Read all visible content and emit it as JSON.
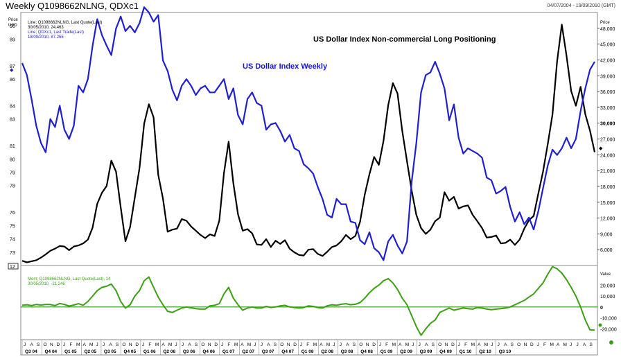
{
  "header": {
    "title": "Weekly Q1098662NLNG, QDXc1",
    "range": "04/07/2004 - 19/09/2010 (GMT)"
  },
  "colors": {
    "price": "#1f1fd0",
    "positioning": "#000000",
    "momentum": "#3aa012",
    "zero": "#2a9a10"
  },
  "chart_data": [
    {
      "type": "line",
      "title": "US Dollar Index Non-commercial Long Positioning",
      "subtitle": "US Dollar Index Weekly",
      "left_axis": {
        "label": "Price USD",
        "ticks": [
          "90",
          "89",
          "87",
          "86",
          "84",
          "83",
          "81",
          "80",
          "79",
          "78",
          "76",
          "75",
          "74",
          "73"
        ],
        "ylim": [
          72,
          91
        ]
      },
      "right_axis": {
        "ticks": [
          "48,000",
          "45,000",
          "42,000",
          "39,000",
          "36,000",
          "33,000",
          "30,000",
          "27,000",
          "24,000",
          "21,000",
          "18,000",
          "15,000",
          "12,000",
          "9,000",
          "6,000"
        ],
        "ylim": [
          3000,
          51000
        ]
      },
      "corner_label": "12",
      "legend": [
        {
          "label": "Line; Q1098662NLNG, Last Quote(Last)",
          "date": "30/05/2010",
          "value": "24,463"
        },
        {
          "label": "Line; QDXc1, Last Trade(Last)",
          "date": "18/09/2010",
          "value": "87.255"
        }
      ],
      "series": [
        {
          "name": "QDXc1",
          "axis": "left",
          "color": "#1f1fd0",
          "values": [
            87.2,
            86.3,
            84.5,
            82.5,
            81.2,
            80.5,
            83,
            82.4,
            84,
            82.2,
            81.5,
            82.5,
            85.5,
            85,
            86,
            88.5,
            90.5,
            89.3,
            88.5,
            87.8,
            89.8,
            90.7,
            89.6,
            90,
            89.5,
            90.2,
            91.4,
            91,
            90.3,
            90.8,
            87.4,
            86.6,
            85.2,
            84.4,
            85.5,
            86,
            85.5,
            84.8,
            85.3,
            85.5,
            85,
            85,
            85.5,
            86,
            84.5,
            85.3,
            83.3,
            82.6,
            84.5,
            85,
            84.2,
            84,
            82.2,
            82.6,
            82.7,
            82.1,
            81.3,
            81.8,
            80.8,
            80.6,
            79.6,
            79.3,
            78.9,
            77.9,
            77,
            75.8,
            75.6,
            77,
            76.6,
            76.6,
            75.3,
            75.2,
            73.9,
            73.6,
            74.5,
            73.3,
            73,
            72.4,
            73.8,
            74.3,
            73.5,
            72.9,
            73.8,
            78.3,
            81.2,
            85,
            86.3,
            86.5,
            87.3,
            86.4,
            85.3,
            82.9,
            84.1,
            81.6,
            80.4,
            80.8,
            80.6,
            80.4,
            80.1,
            78.6,
            78.4,
            77.4,
            77.6,
            77.9,
            76.4,
            75.3,
            76,
            75.1,
            75.6,
            74.7,
            76.1,
            77.8,
            79.5,
            80.7,
            80.3,
            80.8,
            81.6,
            80.8,
            81.5,
            83.6,
            85.3,
            86.7,
            87.3
          ]
        },
        {
          "name": "Q1098662NLNG",
          "axis": "right",
          "color": "#000000",
          "values": [
            3900,
            3600,
            3800,
            4000,
            4500,
            5100,
            5800,
            6200,
            6700,
            6600,
            5900,
            6600,
            6800,
            7200,
            7900,
            10200,
            14700,
            16800,
            18100,
            22900,
            20800,
            14000,
            7600,
            10300,
            15900,
            21500,
            29900,
            33600,
            31100,
            20200,
            15700,
            9400,
            9800,
            10000,
            11800,
            11500,
            10400,
            9600,
            8800,
            8200,
            8900,
            8600,
            11500,
            20500,
            26500,
            18600,
            12700,
            9600,
            9900,
            9100,
            7000,
            6900,
            8000,
            6500,
            7700,
            7100,
            7800,
            6200,
            5500,
            5000,
            4900,
            6000,
            6100,
            5200,
            4800,
            5600,
            6500,
            6800,
            7600,
            8800,
            8000,
            8600,
            11300,
            16400,
            20300,
            23600,
            22100,
            26600,
            33400,
            37600,
            35600,
            28500,
            22800,
            17200,
            12600,
            10100,
            9000,
            9800,
            11400,
            12100,
            16900,
            15300,
            16000,
            13800,
            14200,
            14400,
            12600,
            11400,
            10100,
            8300,
            8400,
            8700,
            7200,
            7300,
            7900,
            6900,
            7900,
            10000,
            11600,
            12400,
            16700,
            20800,
            26000,
            31600,
            41700,
            48700,
            42800,
            36100,
            33300,
            36900,
            31700,
            28600,
            24500
          ]
        }
      ]
    },
    {
      "type": "line",
      "axis_label": "Value",
      "right_axis": {
        "ticks": [
          "20,000",
          "10,000",
          "0",
          "-10,000",
          "-20,000"
        ],
        "ylim": [
          -30000,
          38000
        ]
      },
      "legend": [
        {
          "label": "Mom; Q1098662NLNG, Last Quote(Last), 14",
          "date": "30/05/2010",
          "value": "-21,246"
        }
      ],
      "series": [
        {
          "name": "Mom",
          "color": "#3aa012",
          "values": [
            1500,
            2000,
            1200,
            2300,
            1800,
            2300,
            2200,
            1200,
            3200,
            2300,
            800,
            1800,
            3000,
            1500,
            5000,
            10000,
            15000,
            18000,
            19000,
            21000,
            15000,
            5000,
            -1000,
            2000,
            10000,
            15000,
            24000,
            27500,
            18000,
            9000,
            2000,
            -4000,
            -5000,
            -3000,
            -1000,
            0,
            -800,
            -1500,
            -2000,
            -2000,
            1000,
            1500,
            3000,
            12000,
            18000,
            8000,
            2000,
            -3000,
            -1000,
            0,
            -1000,
            -1000,
            500,
            -500,
            0,
            1000,
            1500,
            0,
            -500,
            -1000,
            -500,
            1000,
            500,
            -500,
            -1000,
            1000,
            2000,
            1500,
            2500,
            3000,
            2000,
            2500,
            4000,
            8000,
            13000,
            17000,
            20000,
            24000,
            26000,
            22000,
            16000,
            8000,
            2000,
            -8000,
            -18000,
            -26000,
            -20000,
            -15000,
            -12000,
            -5000,
            -3000,
            -1000,
            -3000,
            -2000,
            -1000,
            -1500,
            -2000,
            -500,
            -1000,
            -2000,
            -2500,
            -2000,
            -1500,
            -1000,
            0,
            2000,
            4000,
            6000,
            9000,
            12000,
            17000,
            22000,
            30000,
            37000,
            35000,
            31000,
            25000,
            18000,
            10000,
            0,
            -12000,
            -21000,
            -21246
          ]
        }
      ]
    }
  ],
  "x_axis": {
    "months": [
      "J",
      "A",
      "S",
      "O",
      "N",
      "D",
      "J",
      "F",
      "M",
      "A",
      "M",
      "J",
      "J",
      "A",
      "S",
      "O",
      "N",
      "D",
      "J",
      "F",
      "M",
      "A",
      "M",
      "J",
      "J",
      "A",
      "S",
      "O",
      "N",
      "D",
      "J",
      "F",
      "M",
      "A",
      "M",
      "J",
      "J",
      "A",
      "S",
      "O",
      "N",
      "D",
      "J",
      "F",
      "M",
      "A",
      "M",
      "J",
      "J",
      "A",
      "S",
      "O",
      "N",
      "D",
      "J",
      "F",
      "M",
      "A",
      "M",
      "J",
      "J",
      "A",
      "S",
      "O",
      "N",
      "D",
      "J",
      "F",
      "M",
      "A",
      "M",
      "J",
      "J",
      "A",
      "S",
      "O",
      "N",
      "D",
      "J",
      "F",
      "M",
      "A",
      "M",
      "J",
      "J",
      "A",
      "S"
    ],
    "quarters": [
      "Q3 04",
      "Q4 04",
      "Q1 05",
      "Q2 05",
      "Q3 05",
      "Q4 05",
      "Q1 06",
      "Q2 06",
      "Q3 06",
      "Q4 06",
      "Q1 07",
      "Q2 07",
      "Q3 07",
      "Q4 07",
      "Q1 08",
      "Q2 08",
      "Q3 08",
      "Q4 08",
      "Q1 09",
      "Q2 09",
      "Q3 09",
      "Q4 09",
      "Q1 10",
      "Q2 10",
      "Q3 10"
    ]
  }
}
